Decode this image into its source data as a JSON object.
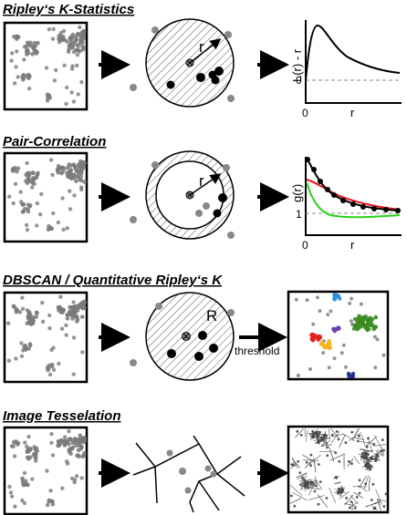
{
  "sections": [
    {
      "title": "Ripley‘s K-Statistics",
      "circle_label": "r",
      "y_label": "L(r) - r",
      "x_label": "r",
      "zero_tick": "0",
      "origin_tick": "0"
    },
    {
      "title": "Pair-Correlation",
      "circle_label": "r",
      "y_label": "g(r)",
      "x_label": "r",
      "one_tick": "1",
      "origin_tick": "0"
    },
    {
      "title": "DBSCAN / Quantitative Ripley‘s K",
      "circle_label": "R",
      "arrow_label": "threshold"
    },
    {
      "title": "Image Tesselation"
    }
  ],
  "colors": {
    "ink": "#000000",
    "grey_point": "#7a7a7a",
    "pc_red": "#e8141b",
    "pc_green": "#27d11a",
    "clusters": [
      "#3a8a1f",
      "#e01f1f",
      "#f2b61a",
      "#2b8fd9",
      "#6a3fb0",
      "#1c2b8c"
    ]
  }
}
